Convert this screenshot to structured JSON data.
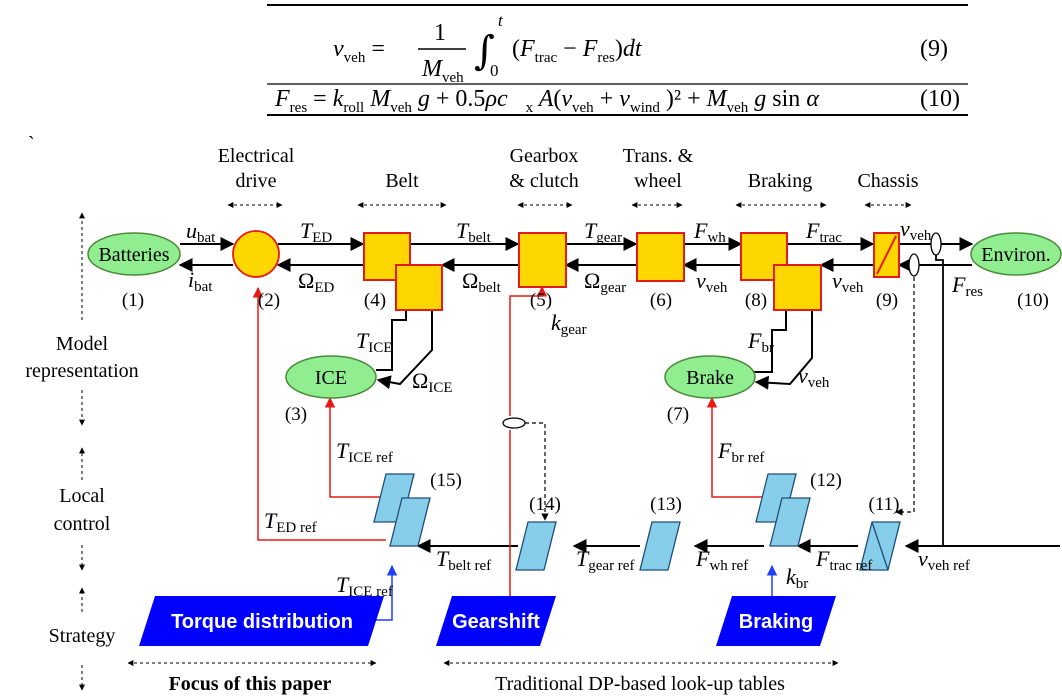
{
  "equations": {
    "eq9": {
      "lhs": "v",
      "lhs_sub": "veh",
      "equals": "=",
      "frac_num": "1",
      "frac_den": "M",
      "frac_den_sub": "veh",
      "int_upper": "t",
      "int_lower": "0",
      "body": "(F",
      "b1_sub": "trac",
      "mid": " − F",
      "b2_sub": "res",
      "tail": ")dt",
      "number": "(9)"
    },
    "eq10": {
      "p1": "F",
      "p1_sub": "res",
      "p2": " = k",
      "p2_sub": "roll",
      "p3": "M",
      "p3_sub": "veh",
      "p4": "g + 0.5ρc",
      "p4_sub": "x",
      "p5": "A(v",
      "p5_sub": "veh",
      "p6": " + v",
      "p6_sub": "wind",
      "p7": ")² + M",
      "p7_sub": "veh",
      "p8": "g sin α",
      "number": "(10)"
    }
  },
  "stray_mark": "`",
  "column_headers": {
    "electrical_drive_1": "Electrical",
    "electrical_drive_2": "drive",
    "belt": "Belt",
    "gearbox_1": "Gearbox",
    "gearbox_2": "& clutch",
    "trans_1": "Trans. &",
    "trans_2": "wheel",
    "braking": "Braking",
    "chassis": "Chassis"
  },
  "row_labels": {
    "model_1": "Model",
    "model_2": "representation",
    "local_1": "Local",
    "local_2": "control",
    "strategy": "Strategy"
  },
  "nodes": {
    "batteries": "Batteries",
    "environ": "Environ.",
    "ice": "ICE",
    "brake": "Brake"
  },
  "numbers": {
    "n1": "(1)",
    "n2": "(2)",
    "n3": "(3)",
    "n4": "(4)",
    "n5": "(5)",
    "n6": "(6)",
    "n7": "(7)",
    "n8": "(8)",
    "n9": "(9)",
    "n10": "(10)",
    "n11": "(11)",
    "n12": "(12)",
    "n13": "(13)",
    "n14": "(14)",
    "n15": "(15)"
  },
  "signals": {
    "u_bat": {
      "v": "u",
      "s": "bat"
    },
    "i_bat": {
      "v": "i",
      "s": "bat"
    },
    "T_ED": {
      "v": "T",
      "s": "ED"
    },
    "Omega_ED": {
      "v": "Ω",
      "s": "ED"
    },
    "T_belt": {
      "v": "T",
      "s": "belt"
    },
    "Omega_belt": {
      "v": "Ω",
      "s": "belt"
    },
    "T_gear": {
      "v": "T",
      "s": "gear"
    },
    "Omega_gear": {
      "v": "Ω",
      "s": "gear"
    },
    "F_wh": {
      "v": "F",
      "s": "wh"
    },
    "v_veh_6": {
      "v": "v",
      "s": "veh"
    },
    "F_trac": {
      "v": "F",
      "s": "trac"
    },
    "v_veh_8": {
      "v": "v",
      "s": "veh"
    },
    "v_veh_9": {
      "v": "v",
      "s": "veh"
    },
    "F_res": {
      "v": "F",
      "s": "res"
    },
    "T_ICE": {
      "v": "T",
      "s": "ICE"
    },
    "Omega_ICE": {
      "v": "Ω",
      "s": "ICE"
    },
    "k_gear": {
      "v": "k",
      "s": "gear"
    },
    "F_br": {
      "v": "F",
      "s": "br"
    },
    "v_veh_br": {
      "v": "v",
      "s": "veh"
    },
    "T_ICE_ref_top": {
      "v": "T",
      "s": "ICE ref"
    },
    "F_br_ref": {
      "v": "F",
      "s": "br ref"
    },
    "T_ED_ref": {
      "v": "T",
      "s": "ED ref"
    },
    "T_belt_ref": {
      "v": "T",
      "s": "belt ref"
    },
    "T_gear_ref": {
      "v": "T",
      "s": "gear ref"
    },
    "F_wh_ref": {
      "v": "F",
      "s": "wh ref"
    },
    "F_trac_ref": {
      "v": "F",
      "s": "trac ref"
    },
    "v_veh_ref": {
      "v": "v",
      "s": "veh ref"
    },
    "T_ICE_ref_bot": {
      "v": "T",
      "s": "ICE ref"
    },
    "k_br": {
      "v": "k",
      "s": "br"
    }
  },
  "strategies": {
    "torque": "Torque distribution",
    "gearshift": "Gearshift",
    "braking": "Braking"
  },
  "footer": {
    "focus": "Focus of this paper",
    "traditional": "Traditional DP-based look-up tables"
  },
  "colors": {
    "yellow_fill": "#FFD700",
    "block_border": "#E41B17",
    "green_fill": "#90EE90",
    "light_blue_fill": "#87CEEB",
    "strategy_blue": "#0000FF",
    "red_line": "#E41B17"
  }
}
